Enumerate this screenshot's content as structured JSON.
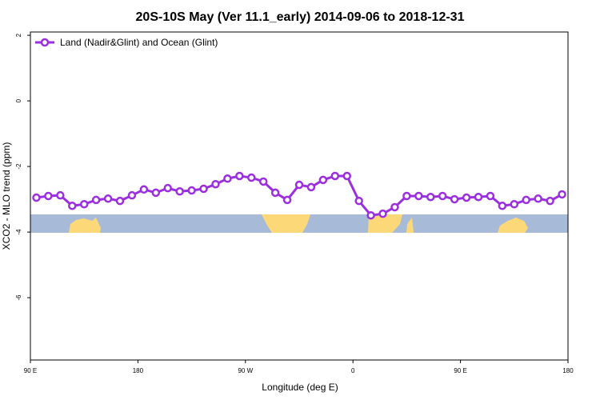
{
  "chart_data": {
    "type": "line",
    "title": "20S-10S May (Ver 11.1_early)   2014-09-06 to 2018-12-31",
    "x_label": "Longitude (deg E)",
    "y_label": "XCO2 - MLO trend (ppm)",
    "xlim": [
      90,
      540
    ],
    "xticks": [
      {
        "value": 90,
        "label": "90 E"
      },
      180,
      {
        "value": 270,
        "label": "90 W"
      },
      {
        "value": 360,
        "label": "0"
      },
      {
        "value": 450,
        "label": "90 E"
      },
      {
        "value": 540,
        "label": "180"
      }
    ],
    "ylim": [
      -7.9,
      2.1
    ],
    "yticks": [
      -6,
      -4,
      -2,
      0,
      2
    ],
    "legend_position": "upper left",
    "x": [
      95,
      105,
      115,
      125,
      135,
      145,
      155,
      165,
      175,
      185,
      195,
      205,
      215,
      225,
      235,
      245,
      255,
      265,
      275,
      285,
      295,
      305,
      315,
      325,
      335,
      345,
      355,
      365,
      375,
      385,
      395,
      405,
      415,
      425,
      435,
      445,
      455,
      465,
      475,
      485,
      495,
      505,
      515,
      525,
      535
    ],
    "series": [
      {
        "name": "Land (Nadir&Glint) and Ocean (Glint)",
        "color": "#9b2fe0",
        "values": [
          -2.95,
          -2.9,
          -2.88,
          -3.2,
          -3.15,
          -3.02,
          -2.98,
          -3.05,
          -2.88,
          -2.7,
          -2.8,
          -2.66,
          -2.76,
          -2.73,
          -2.68,
          -2.54,
          -2.37,
          -2.29,
          -2.34,
          -2.46,
          -2.8,
          -3.02,
          -2.56,
          -2.63,
          -2.41,
          -2.29,
          -2.29,
          -3.05,
          -3.49,
          -3.44,
          -3.24,
          -2.9,
          -2.9,
          -2.93,
          -2.9,
          -3.0,
          -2.95,
          -2.93,
          -2.9,
          -3.2,
          -3.15,
          -3.02,
          -2.98,
          -3.05,
          -2.85
        ]
      }
    ]
  }
}
